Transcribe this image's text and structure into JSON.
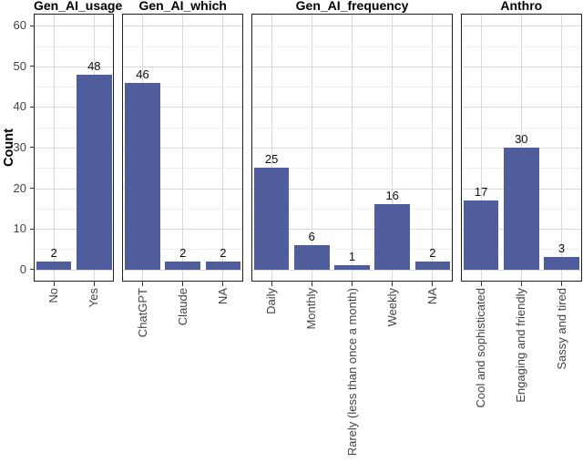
{
  "figure": {
    "colors": {
      "bar": "#4f5d9d",
      "grid_major": "#d9d9d9",
      "grid_minor": "#e2e2e2",
      "panel_border": "#1f1f1f",
      "axis_text": "#434343",
      "tick": "#333333",
      "background": "#ffffff"
    },
    "y_axis": {
      "title": "Count",
      "ticks": [
        0,
        10,
        20,
        30,
        40,
        50,
        60
      ]
    }
  },
  "chart_data": {
    "type": "bar",
    "title": "",
    "xlabel": "",
    "ylabel": "Count",
    "ylim": [
      0,
      63
    ],
    "y_ticks": [
      0,
      10,
      20,
      30,
      40,
      50,
      60
    ],
    "grid": true,
    "legend": false,
    "layout": "faceted horizontal panels, shared y axis, x labels rotated 90",
    "panels": [
      {
        "title": "Gen_AI_usage",
        "categories": [
          "No",
          "Yes"
        ],
        "values": [
          2,
          48
        ]
      },
      {
        "title": "Gen_AI_which",
        "categories": [
          "ChatGPT",
          "Claude",
          "NA"
        ],
        "values": [
          46,
          2,
          2
        ]
      },
      {
        "title": "Gen_AI_frequency",
        "categories": [
          "Daily",
          "Monthly",
          "Rarely (less than once a month)",
          "Weekly",
          "NA"
        ],
        "values": [
          25,
          6,
          1,
          16,
          2
        ]
      },
      {
        "title": "Anthro",
        "categories": [
          "Cool and sophisticated",
          "Engaging and friendly",
          "Sassy and tired"
        ],
        "values": [
          17,
          30,
          3
        ]
      }
    ]
  }
}
